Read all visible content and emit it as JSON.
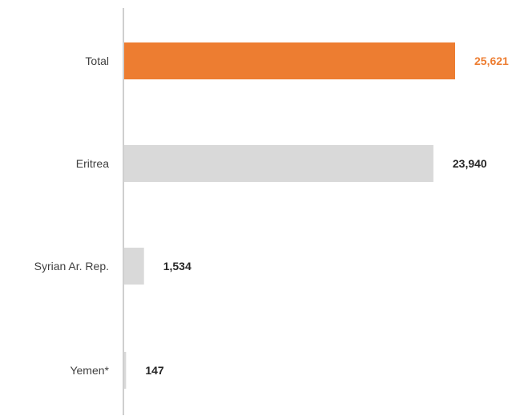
{
  "chart_data": {
    "type": "bar",
    "orientation": "horizontal",
    "categories": [
      "Total",
      "Eritrea",
      "Syrian Ar. Rep.",
      "Yemen*"
    ],
    "values": [
      25621,
      23940,
      1534,
      147
    ],
    "value_labels": [
      "25,621",
      "23,940",
      "1,534",
      "147"
    ],
    "highlight_category": "Total",
    "colors": {
      "highlight_bar": "#ed7d31",
      "highlight_label": "#ed7d31",
      "bar": "#d9d9d9",
      "label": "#262626",
      "axis": "#bfbfbf"
    },
    "xlim": [
      0,
      25621
    ],
    "grid": false,
    "legend": "none"
  }
}
